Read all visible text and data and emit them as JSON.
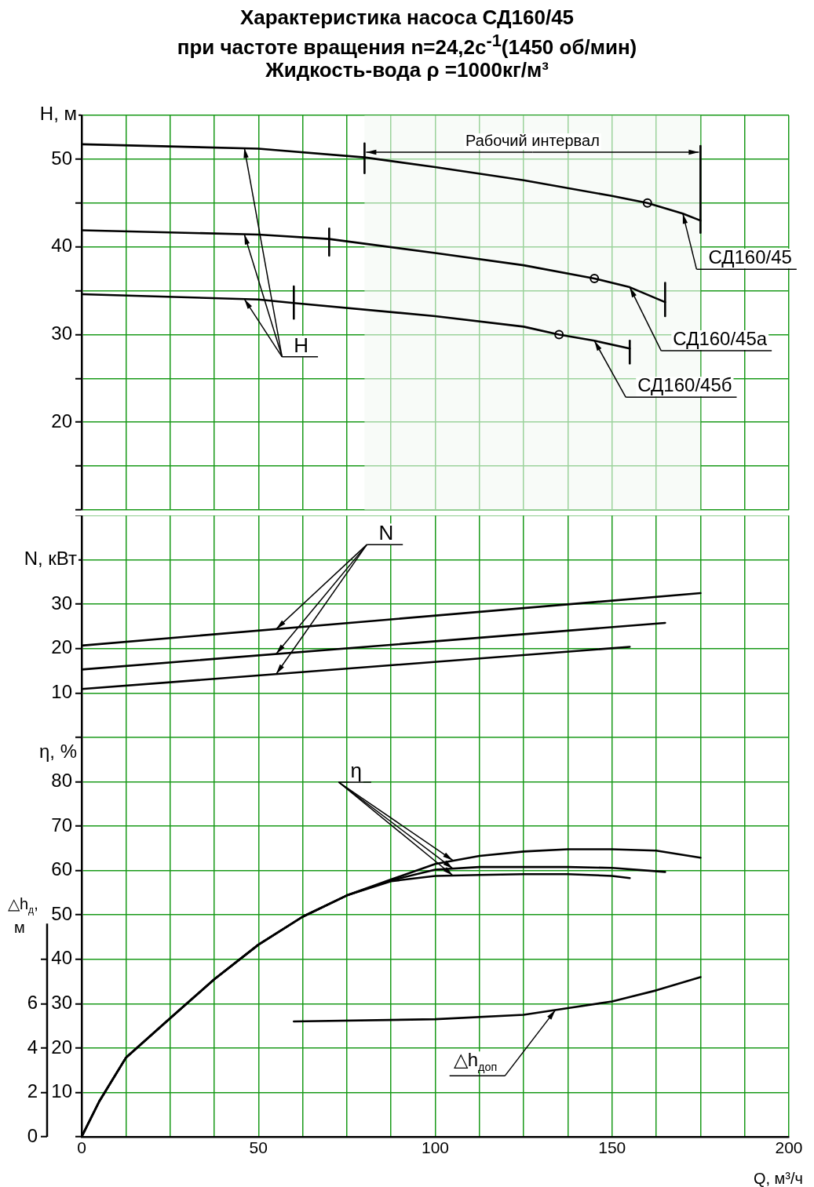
{
  "chart_data": [
    {
      "type": "line",
      "title": "Характеристика насоса СД160/45",
      "subtitle": "при частоте вращения n=24,2с$^{-1}$(1450 об/мин)\nЖидкость-вода ρ =1000кг/м³",
      "ylabel": "H, м",
      "xlim": [
        0,
        200
      ],
      "xticks": [
        0,
        {
          "value": 12.5,
          "label": null
        },
        {
          "value": 25,
          "label": null
        },
        {
          "value": 37.5,
          "label": null
        },
        50,
        {
          "value": 62.5,
          "label": null
        },
        {
          "value": 75,
          "label": null
        },
        {
          "value": 87.5,
          "label": null
        },
        100,
        {
          "value": 112.5,
          "label": null
        },
        {
          "value": 125,
          "label": null
        },
        {
          "value": 137.5,
          "label": null
        },
        150,
        {
          "value": 162.5,
          "label": null
        },
        {
          "value": 175,
          "label": null
        },
        {
          "value": 187.5,
          "label": null
        },
        200
      ],
      "ylim": [
        10,
        55
      ],
      "yticks": [
        {
          "value": 10,
          "label": null
        },
        {
          "value": 15,
          "label": null
        },
        20,
        {
          "value": 25,
          "label": null
        },
        30,
        {
          "value": 35,
          "label": null
        },
        40,
        {
          "value": 45,
          "label": null
        },
        50,
        {
          "value": 55,
          "label": null
        }
      ],
      "grid": true,
      "legend": false,
      "tick_labels": "y",
      "marker": "none",
      "line_style": "solid",
      "annotations": [
        {
          "text": "H",
          "x": 46,
          "y": 51.3
        }
      ],
      "bands": [
        {
          "axis": "x",
          "from": 80,
          "to": 175,
          "label": "Рабочий интервал",
          "color": "#f3f8f3"
        }
      ],
      "series": [
        {
          "name": "СД160/45",
          "color": "#000000",
          "x": [
            0,
            50,
            80,
            100,
            125,
            150,
            160,
            170,
            175
          ],
          "values": [
            51.7,
            51.2,
            50.2,
            49.1,
            47.6,
            45.8,
            45.0,
            43.8,
            43.0
          ]
        },
        {
          "name": "СД160/45а",
          "color": "#000000",
          "x": [
            0,
            50,
            70,
            100,
            125,
            145,
            155,
            165
          ],
          "values": [
            41.9,
            41.4,
            40.9,
            39.3,
            37.9,
            36.4,
            35.4,
            33.7
          ]
        },
        {
          "name": "СД160/45б",
          "color": "#000000",
          "x": [
            0,
            50,
            60,
            100,
            125,
            135,
            145,
            155
          ],
          "values": [
            34.6,
            34.0,
            33.6,
            32.1,
            30.9,
            30.0,
            29.3,
            28.4
          ]
        },
        {
          "type": "scatter",
          "marker": "circle",
          "color": "#000000",
          "x": [
            160,
            145,
            135
          ],
          "values": [
            45.0,
            36.4,
            30.0
          ]
        },
        {
          "color": "#000000",
          "x": [
            80,
            80
          ],
          "values": [
            48.4,
            51.8
          ]
        },
        {
          "color": "#000000",
          "x": [
            175,
            175
          ],
          "values": [
            41.6,
            51.5
          ]
        },
        {
          "color": "#000000",
          "x": [
            70,
            70
          ],
          "values": [
            39.0,
            42.1
          ]
        },
        {
          "color": "#000000",
          "x": [
            165,
            165
          ],
          "values": [
            32.1,
            35.9
          ]
        },
        {
          "color": "#000000",
          "x": [
            60,
            60
          ],
          "values": [
            31.8,
            35.5
          ]
        },
        {
          "color": "#000000",
          "x": [
            155,
            155
          ],
          "values": [
            26.7,
            29.3
          ]
        }
      ]
    },
    {
      "type": "line",
      "ylabel": "N, кВт",
      "xlim": [
        0,
        200
      ],
      "xticks": [
        0,
        {
          "value": 12.5,
          "label": null
        },
        {
          "value": 25,
          "label": null
        },
        {
          "value": 37.5,
          "label": null
        },
        50,
        {
          "value": 62.5,
          "label": null
        },
        {
          "value": 75,
          "label": null
        },
        {
          "value": 87.5,
          "label": null
        },
        100,
        {
          "value": 112.5,
          "label": null
        },
        {
          "value": 125,
          "label": null
        },
        {
          "value": 137.5,
          "label": null
        },
        150,
        {
          "value": 162.5,
          "label": null
        },
        {
          "value": 175,
          "label": null
        },
        {
          "value": 187.5,
          "label": null
        },
        200
      ],
      "ylim": [
        0,
        50
      ],
      "yticks": [
        {
          "value": 0,
          "label": null
        },
        10,
        20,
        30,
        {
          "value": 40,
          "label": null
        },
        {
          "value": 50,
          "label": null
        }
      ],
      "grid": true,
      "legend": false,
      "tick_labels": "y",
      "marker": "none",
      "line_style": "solid",
      "annotations": [
        {
          "text": "N",
          "x": 55,
          "y": 24.4
        }
      ],
      "series": [
        {
          "color": "#000000",
          "x": [
            0,
            175
          ],
          "values": [
            20.7,
            32.5
          ]
        },
        {
          "color": "#000000",
          "x": [
            0,
            165
          ],
          "values": [
            15.3,
            25.8
          ]
        },
        {
          "color": "#000000",
          "x": [
            0,
            155
          ],
          "values": [
            10.9,
            20.4
          ]
        }
      ]
    },
    {
      "type": "line",
      "ylabel": "η, %",
      "y2label": "△h$_{д}$, м",
      "xlabel": "Q, м³/ч",
      "xlim": [
        0,
        200
      ],
      "xticks": [
        0,
        {
          "value": 12.5,
          "label": null
        },
        {
          "value": 25,
          "label": null
        },
        {
          "value": 37.5,
          "label": null
        },
        50,
        {
          "value": 62.5,
          "label": null
        },
        {
          "value": 75,
          "label": null
        },
        {
          "value": 87.5,
          "label": null
        },
        100,
        {
          "value": 112.5,
          "label": null
        },
        {
          "value": 125,
          "label": null
        },
        {
          "value": 137.5,
          "label": null
        },
        150,
        {
          "value": 162.5,
          "label": null
        },
        {
          "value": 175,
          "label": null
        },
        {
          "value": 187.5,
          "label": null
        },
        200
      ],
      "ylim": [
        0,
        90
      ],
      "yticks": [
        {
          "value": 0,
          "label": null
        },
        10,
        20,
        30,
        40,
        50,
        60,
        70,
        80,
        {
          "value": 90,
          "label": null
        }
      ],
      "y2lim": [
        0,
        18
      ],
      "y2ticks": [
        0,
        2,
        4,
        6,
        {
          "value": 8,
          "label": null
        }
      ],
      "grid": true,
      "legend": false,
      "marker": "none",
      "line_style": "solid",
      "annotations": [
        {
          "text": "η",
          "x": 105,
          "y": 62.3
        }
      ],
      "series": [
        {
          "color": "#000000",
          "x": [
            0,
            5,
            12.5,
            25,
            37.5,
            50,
            62.5,
            75,
            87.5,
            100,
            112.5,
            125,
            137.5,
            150,
            162.5,
            175
          ],
          "values": [
            0,
            8,
            17.8,
            26.7,
            35.5,
            43.3,
            49.6,
            54.4,
            58,
            61.5,
            63.3,
            64.3,
            64.8,
            64.8,
            64.5,
            62.9
          ]
        },
        {
          "color": "#000000",
          "x": [
            0,
            5,
            12.5,
            25,
            37.5,
            50,
            62.5,
            75,
            87.5,
            100,
            112.5,
            125,
            137.5,
            150,
            165
          ],
          "values": [
            0,
            8,
            17.8,
            26.7,
            35.5,
            43.3,
            49.6,
            54.4,
            57.8,
            60.2,
            60.8,
            60.8,
            60.8,
            60.6,
            59.7
          ]
        },
        {
          "color": "#000000",
          "x": [
            0,
            5,
            12.5,
            25,
            37.5,
            50,
            62.5,
            75,
            87.5,
            100,
            112.5,
            125,
            137.5,
            150,
            155
          ],
          "values": [
            0,
            8,
            17.8,
            26.7,
            35.5,
            43.3,
            49.6,
            54.4,
            57.6,
            58.8,
            59.0,
            59.2,
            59.2,
            58.8,
            58.3
          ]
        },
        {
          "name": "△h$_{доп}$",
          "axis": "y2",
          "color": "#000000",
          "x": [
            60,
            100,
            125,
            137.5,
            150,
            162.5,
            175
          ],
          "values": [
            5.2,
            5.3,
            5.5,
            5.8,
            6.1,
            6.6,
            7.2
          ]
        }
      ]
    }
  ]
}
